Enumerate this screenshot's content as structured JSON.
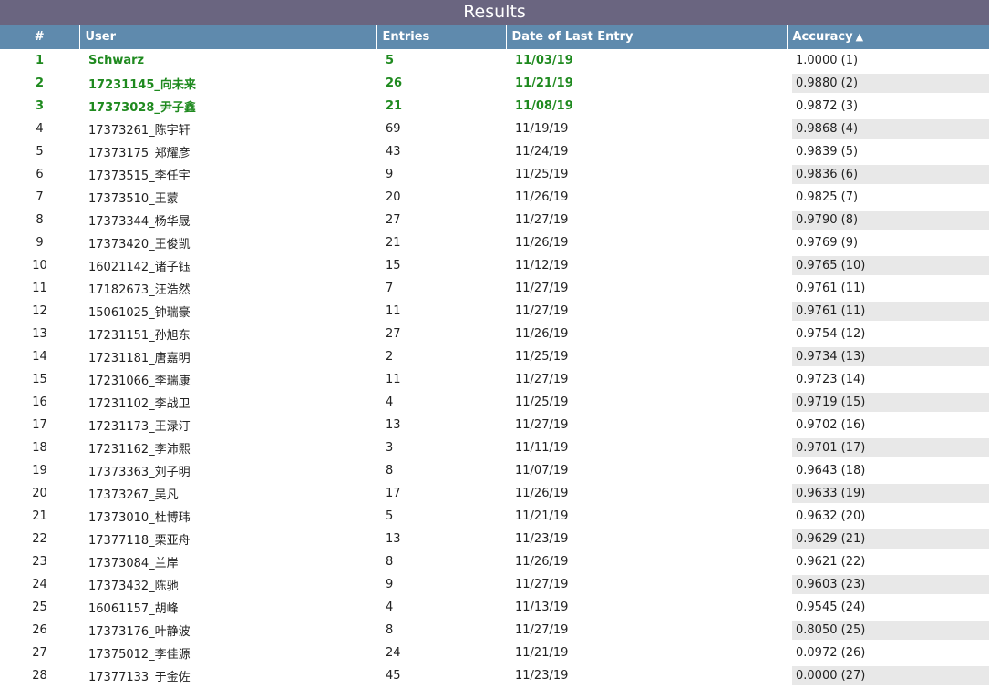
{
  "page": {
    "title": "Results"
  },
  "columns": [
    "#",
    "User",
    "Entries",
    "Date of Last Entry",
    "Accuracy"
  ],
  "sort": {
    "column": "Accuracy",
    "direction": "ascending",
    "icon": "triangle-up-icon"
  },
  "colors": {
    "title_bar": "#6a6580",
    "header": "#5f8aad",
    "top_rank_text": "#1f8a1f",
    "row_stripe": "#e8e8e8"
  },
  "rows": [
    {
      "rank": "1",
      "user": "Schwarz",
      "entries": "5",
      "date": "11/03/19",
      "accuracy": "1.0000 (1)",
      "top": true
    },
    {
      "rank": "2",
      "user": "17231145_向未来",
      "entries": "26",
      "date": "11/21/19",
      "accuracy": "0.9880 (2)",
      "top": true
    },
    {
      "rank": "3",
      "user": "17373028_尹子鑫",
      "entries": "21",
      "date": "11/08/19",
      "accuracy": "0.9872 (3)",
      "top": true
    },
    {
      "rank": "4",
      "user": "17373261_陈宇轩",
      "entries": "69",
      "date": "11/19/19",
      "accuracy": "0.9868 (4)"
    },
    {
      "rank": "5",
      "user": "17373175_郑耀彦",
      "entries": "43",
      "date": "11/24/19",
      "accuracy": "0.9839 (5)"
    },
    {
      "rank": "6",
      "user": "17373515_李任宇",
      "entries": "9",
      "date": "11/25/19",
      "accuracy": "0.9836 (6)"
    },
    {
      "rank": "7",
      "user": "17373510_王蒙",
      "entries": "20",
      "date": "11/26/19",
      "accuracy": "0.9825 (7)"
    },
    {
      "rank": "8",
      "user": "17373344_杨华晟",
      "entries": "27",
      "date": "11/27/19",
      "accuracy": "0.9790 (8)"
    },
    {
      "rank": "9",
      "user": "17373420_王俊凯",
      "entries": "21",
      "date": "11/26/19",
      "accuracy": "0.9769 (9)"
    },
    {
      "rank": "10",
      "user": "16021142_诸子钰",
      "entries": "15",
      "date": "11/12/19",
      "accuracy": "0.9765 (10)"
    },
    {
      "rank": "11",
      "user": "17182673_汪浩然",
      "entries": "7",
      "date": "11/27/19",
      "accuracy": "0.9761 (11)"
    },
    {
      "rank": "12",
      "user": "15061025_钟瑞豪",
      "entries": "11",
      "date": "11/27/19",
      "accuracy": "0.9761 (11)"
    },
    {
      "rank": "13",
      "user": "17231151_孙旭东",
      "entries": "27",
      "date": "11/26/19",
      "accuracy": "0.9754 (12)"
    },
    {
      "rank": "14",
      "user": "17231181_唐嘉明",
      "entries": "2",
      "date": "11/25/19",
      "accuracy": "0.9734 (13)"
    },
    {
      "rank": "15",
      "user": "17231066_李瑞康",
      "entries": "11",
      "date": "11/27/19",
      "accuracy": "0.9723 (14)"
    },
    {
      "rank": "16",
      "user": "17231102_李战卫",
      "entries": "4",
      "date": "11/25/19",
      "accuracy": "0.9719 (15)"
    },
    {
      "rank": "17",
      "user": "17231173_王渌汀",
      "entries": "13",
      "date": "11/27/19",
      "accuracy": "0.9702 (16)"
    },
    {
      "rank": "18",
      "user": "17231162_李沛熙",
      "entries": "3",
      "date": "11/11/19",
      "accuracy": "0.9701 (17)"
    },
    {
      "rank": "19",
      "user": "17373363_刘子明",
      "entries": "8",
      "date": "11/07/19",
      "accuracy": "0.9643 (18)"
    },
    {
      "rank": "20",
      "user": "17373267_吴凡",
      "entries": "17",
      "date": "11/26/19",
      "accuracy": "0.9633 (19)"
    },
    {
      "rank": "21",
      "user": "17373010_杜博玮",
      "entries": "5",
      "date": "11/21/19",
      "accuracy": "0.9632 (20)"
    },
    {
      "rank": "22",
      "user": "17377118_栗亚舟",
      "entries": "13",
      "date": "11/23/19",
      "accuracy": "0.9629 (21)"
    },
    {
      "rank": "23",
      "user": "17373084_兰岸",
      "entries": "8",
      "date": "11/26/19",
      "accuracy": "0.9621 (22)"
    },
    {
      "rank": "24",
      "user": "17373432_陈驰",
      "entries": "9",
      "date": "11/27/19",
      "accuracy": "0.9603 (23)"
    },
    {
      "rank": "25",
      "user": "16061157_胡峰",
      "entries": "4",
      "date": "11/13/19",
      "accuracy": "0.9545 (24)"
    },
    {
      "rank": "26",
      "user": "17373176_叶静波",
      "entries": "8",
      "date": "11/27/19",
      "accuracy": "0.8050 (25)"
    },
    {
      "rank": "27",
      "user": "17375012_李佳源",
      "entries": "24",
      "date": "11/21/19",
      "accuracy": "0.0972 (26)"
    },
    {
      "rank": "28",
      "user": "17377133_于金佐",
      "entries": "45",
      "date": "11/23/19",
      "accuracy": "0.0000 (27)"
    }
  ]
}
